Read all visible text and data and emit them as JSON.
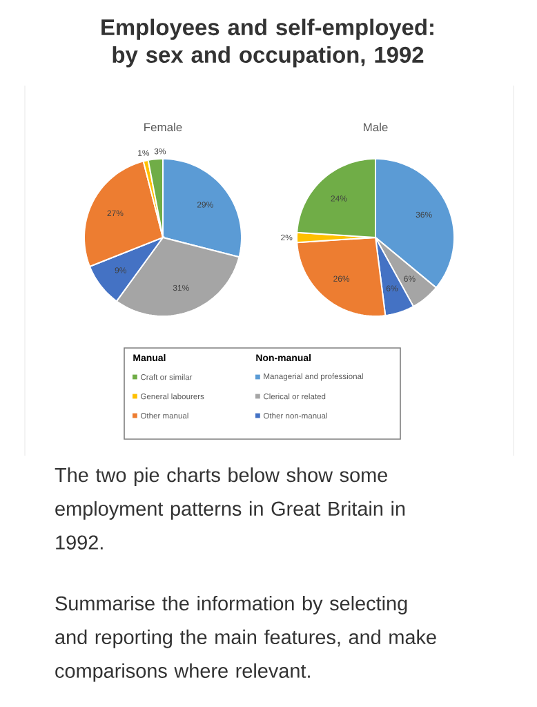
{
  "chart_data": [
    {
      "type": "pie",
      "title": "Employees and self-employed: by sex and occupation, 1992",
      "subtitle": "Female",
      "categories": [
        null,
        null,
        null,
        null,
        null,
        null
      ],
      "values": [
        29,
        31,
        9,
        27,
        1,
        3
      ],
      "value_labels": [
        "29%",
        "31%",
        "9%",
        "27%",
        "1%",
        "3%"
      ],
      "colors": [
        "#5b9bd5",
        "#a5a5a5",
        "#4472c4",
        "#ed7d31",
        "#ffc000",
        "#70ad47"
      ],
      "annotations": [
        "The two pie charts below show some employment patterns in Great Britain in 1992.",
        "Summarise the information by selecting and reporting the main features, and make comparisons where relevant."
      ]
    },
    {
      "type": "pie",
      "title": "Male",
      "categories": [
        "Managerial and professional",
        "Clerical or related",
        "Other non-manual",
        "Other manual",
        "General labourers",
        "Craft or similar"
      ],
      "values": [
        36,
        6,
        6,
        26,
        2,
        24
      ],
      "value_labels": [
        "36%",
        "6%",
        "6%",
        "26%",
        "2%",
        "24%"
      ],
      "colors": [
        "#5b9bd5",
        "#a5a5a5",
        "#4472c4",
        "#ed7d31",
        "#ffc000",
        "#70ad47"
      ],
      "legend": "bottom",
      "annotations": [
        "Non-manual",
        "Manual"
      ]
    }
  ]
}
